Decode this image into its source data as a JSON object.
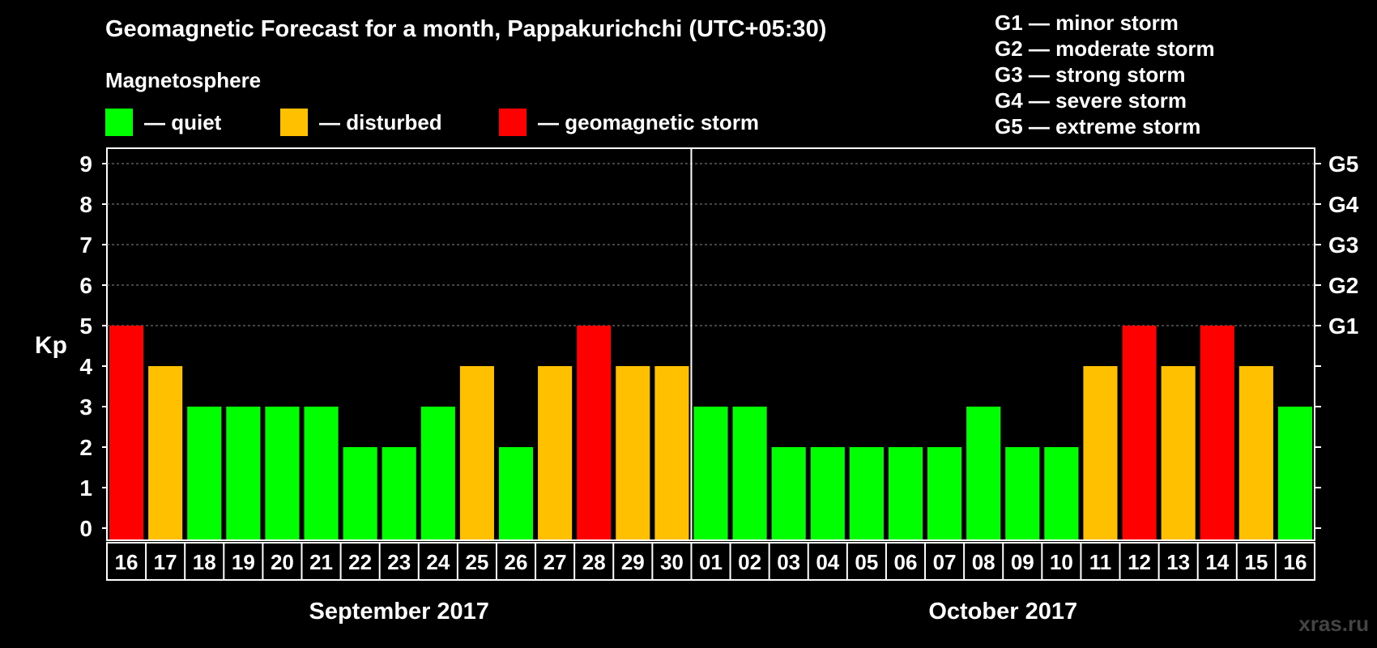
{
  "header": {
    "title": "Geomagnetic Forecast for a month, Pappakurichchi (UTC+05:30)",
    "magnetosphere_label": "Magnetosphere"
  },
  "legend": [
    {
      "text": "— quiet",
      "color": "#00ff00"
    },
    {
      "text": "— disturbed",
      "color": "#ffc000"
    },
    {
      "text": "— geomagnetic storm",
      "color": "#ff0000"
    }
  ],
  "storm_scale": [
    "G1 — minor storm",
    "G2 — moderate storm",
    "G3 — strong storm",
    "G4 — severe storm",
    "G5 — extreme storm"
  ],
  "watermark": "xras.ru",
  "chart_data": {
    "type": "bar",
    "ylabel": "Kp",
    "ylim": [
      0,
      9
    ],
    "yticks": [
      "0",
      "1",
      "2",
      "3",
      "4",
      "5",
      "6",
      "7",
      "8",
      "9"
    ],
    "right_axis_labels": [
      {
        "kp": 5,
        "label": "G1"
      },
      {
        "kp": 6,
        "label": "G2"
      },
      {
        "kp": 7,
        "label": "G3"
      },
      {
        "kp": 8,
        "label": "G4"
      },
      {
        "kp": 9,
        "label": "G5"
      }
    ],
    "grid": "dashed horizontal at 5-9",
    "categories": [
      "16",
      "17",
      "18",
      "19",
      "20",
      "21",
      "22",
      "23",
      "24",
      "25",
      "26",
      "27",
      "28",
      "29",
      "30",
      "01",
      "02",
      "03",
      "04",
      "05",
      "06",
      "07",
      "08",
      "09",
      "10",
      "11",
      "12",
      "13",
      "14",
      "15",
      "16"
    ],
    "values": [
      5,
      4,
      3,
      3,
      3,
      3,
      2,
      2,
      3,
      4,
      2,
      4,
      5,
      4,
      4,
      3,
      3,
      2,
      2,
      2,
      2,
      2,
      3,
      2,
      2,
      4,
      5,
      4,
      5,
      4,
      3
    ],
    "months": [
      {
        "label": "September 2017",
        "days": 15
      },
      {
        "label": "October 2017",
        "days": 16
      }
    ],
    "colors": {
      "quiet": "#00ff00",
      "disturbed": "#ffc000",
      "storm": "#ff0000"
    }
  }
}
